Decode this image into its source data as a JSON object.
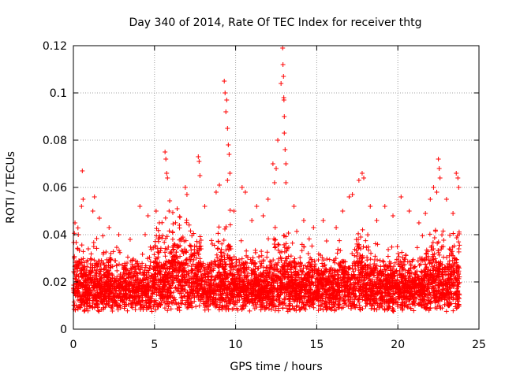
{
  "chart_data": {
    "type": "scatter",
    "title": "Day 340 of 2014, Rate Of TEC Index for receiver thtg",
    "xlabel": "GPS time / hours",
    "ylabel": "ROTI / TECUs",
    "xlim": [
      0,
      25
    ],
    "ylim": [
      0,
      0.12
    ],
    "xticks": [
      0,
      5,
      10,
      15,
      20,
      25
    ],
    "yticks": [
      0,
      0.02,
      0.04,
      0.06,
      0.08,
      0.1,
      0.12
    ],
    "xtick_labels": [
      "0",
      "5",
      "10",
      "15",
      "20",
      "25"
    ],
    "ytick_labels": [
      "0",
      "0.02",
      "0.04",
      "0.06",
      "0.08",
      "0.1",
      "0.12"
    ],
    "grid": true,
    "marker": "+",
    "color": "#ff0000",
    "series": [
      {
        "name": "ROTI",
        "sampling_note": "dense band ~0.007-0.03 TECU from 0 to 23.8 h; representative outliers listed",
        "points": [
          [
            0.1,
            0.045
          ],
          [
            0.3,
            0.04
          ],
          [
            0.5,
            0.052
          ],
          [
            0.55,
            0.067
          ],
          [
            0.6,
            0.055
          ],
          [
            1.2,
            0.05
          ],
          [
            1.3,
            0.056
          ],
          [
            1.6,
            0.047
          ],
          [
            2.2,
            0.043
          ],
          [
            2.8,
            0.04
          ],
          [
            3.5,
            0.038
          ],
          [
            4.1,
            0.052
          ],
          [
            4.6,
            0.048
          ],
          [
            5.1,
            0.05
          ],
          [
            5.3,
            0.045
          ],
          [
            5.65,
            0.075
          ],
          [
            5.7,
            0.072
          ],
          [
            5.75,
            0.066
          ],
          [
            5.8,
            0.064
          ],
          [
            5.9,
            0.05
          ],
          [
            6.4,
            0.051
          ],
          [
            6.9,
            0.06
          ],
          [
            7.0,
            0.057
          ],
          [
            7.7,
            0.073
          ],
          [
            7.75,
            0.071
          ],
          [
            7.8,
            0.065
          ],
          [
            8.1,
            0.052
          ],
          [
            8.8,
            0.058
          ],
          [
            9.0,
            0.061
          ],
          [
            9.3,
            0.105
          ],
          [
            9.35,
            0.1
          ],
          [
            9.4,
            0.092
          ],
          [
            9.45,
            0.097
          ],
          [
            9.5,
            0.085
          ],
          [
            9.55,
            0.078
          ],
          [
            9.6,
            0.074
          ],
          [
            9.65,
            0.066
          ],
          [
            9.5,
            0.063
          ],
          [
            9.9,
            0.05
          ],
          [
            10.4,
            0.06
          ],
          [
            10.6,
            0.058
          ],
          [
            11.0,
            0.046
          ],
          [
            11.3,
            0.052
          ],
          [
            11.7,
            0.048
          ],
          [
            12.0,
            0.055
          ],
          [
            12.3,
            0.07
          ],
          [
            12.4,
            0.062
          ],
          [
            12.5,
            0.068
          ],
          [
            12.6,
            0.08
          ],
          [
            12.8,
            0.104
          ],
          [
            12.9,
            0.119
          ],
          [
            12.92,
            0.112
          ],
          [
            12.95,
            0.107
          ],
          [
            12.97,
            0.098
          ],
          [
            12.98,
            0.097
          ],
          [
            13.0,
            0.09
          ],
          [
            13.0,
            0.083
          ],
          [
            13.05,
            0.076
          ],
          [
            13.1,
            0.07
          ],
          [
            13.1,
            0.062
          ],
          [
            13.6,
            0.052
          ],
          [
            14.2,
            0.046
          ],
          [
            14.8,
            0.043
          ],
          [
            15.4,
            0.046
          ],
          [
            16.2,
            0.043
          ],
          [
            16.6,
            0.05
          ],
          [
            17.0,
            0.056
          ],
          [
            17.2,
            0.057
          ],
          [
            17.6,
            0.063
          ],
          [
            17.8,
            0.066
          ],
          [
            17.9,
            0.064
          ],
          [
            18.3,
            0.052
          ],
          [
            18.7,
            0.046
          ],
          [
            19.2,
            0.052
          ],
          [
            19.7,
            0.048
          ],
          [
            20.2,
            0.056
          ],
          [
            20.7,
            0.05
          ],
          [
            21.3,
            0.045
          ],
          [
            21.7,
            0.049
          ],
          [
            22.0,
            0.055
          ],
          [
            22.2,
            0.06
          ],
          [
            22.4,
            0.058
          ],
          [
            22.5,
            0.072
          ],
          [
            22.55,
            0.068
          ],
          [
            22.6,
            0.064
          ],
          [
            23.0,
            0.055
          ],
          [
            23.4,
            0.049
          ],
          [
            23.6,
            0.066
          ],
          [
            23.7,
            0.064
          ],
          [
            23.75,
            0.06
          ]
        ]
      }
    ]
  }
}
